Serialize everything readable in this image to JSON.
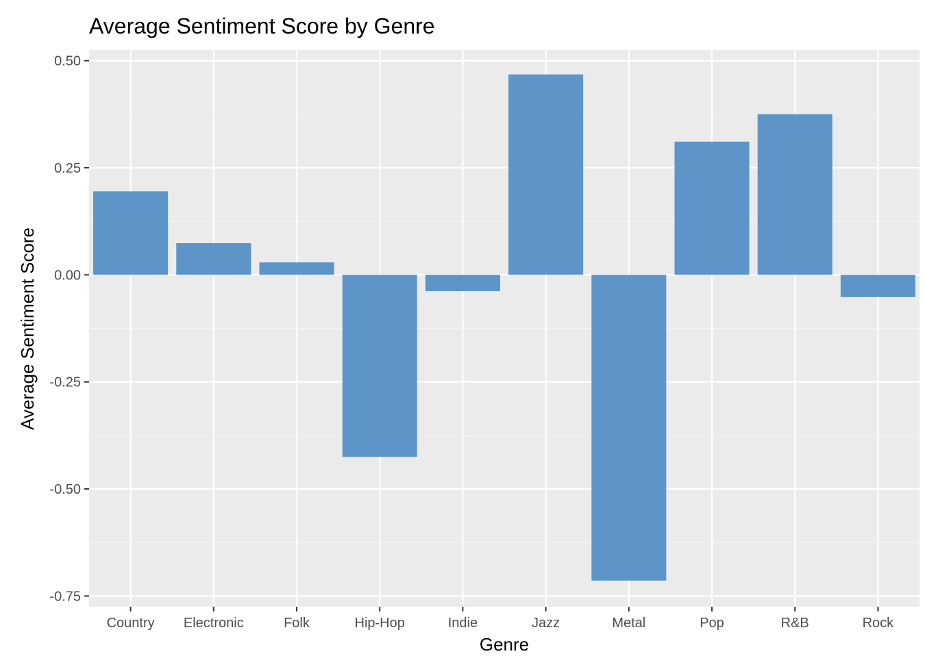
{
  "chart_data": {
    "type": "bar",
    "title": "Average Sentiment Score by Genre",
    "xlabel": "Genre",
    "ylabel": "Average Sentiment Score",
    "categories": [
      "Country",
      "Electronic",
      "Folk",
      "Hip-Hop",
      "Indie",
      "Jazz",
      "Metal",
      "Pop",
      "R&B",
      "Rock"
    ],
    "values": [
      0.195,
      0.074,
      0.029,
      -0.425,
      -0.038,
      0.468,
      -0.714,
      0.311,
      0.375,
      -0.052
    ],
    "ylim": [
      -0.775,
      0.525
    ],
    "yticks": [
      0.5,
      0.25,
      0.0,
      -0.25,
      -0.5,
      -0.75
    ],
    "ytick_labels": [
      "0.50",
      "0.25",
      "0.00",
      "-0.25",
      "-0.50",
      "-0.75"
    ],
    "grid": true,
    "legend": "none",
    "colors": {
      "bar": "#5e95c9",
      "panel": "#ebebeb",
      "grid_major": "#ffffff",
      "grid_minor": "#f5f5f5",
      "tick_text": "#4d4d4d",
      "axis_title": "#000000"
    }
  }
}
